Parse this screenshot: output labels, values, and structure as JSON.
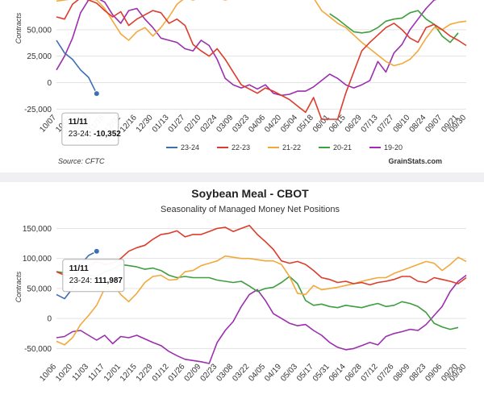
{
  "chart_data": [
    {
      "type": "line",
      "title": "",
      "subtitle": "",
      "ylabel": "Contracts",
      "ylim": [
        -30000,
        78000
      ],
      "yticks": [
        -25000,
        0,
        25000,
        50000
      ],
      "ytick_labels": [
        "-25,000",
        "0",
        "25,000",
        "50,000"
      ],
      "x_labels": [
        "10/07",
        "10/21",
        "11/04",
        "11/18",
        "12/02",
        "12/16",
        "12/30",
        "01/13",
        "01/27",
        "02/10",
        "02/24",
        "03/09",
        "03/23",
        "04/06",
        "04/20",
        "05/04",
        "05/18",
        "06/01",
        "06/15",
        "06/29",
        "07/13",
        "07/27",
        "08/10",
        "08/24",
        "09/07",
        "09/21",
        "09/30"
      ],
      "x_label_positions": [
        0,
        2,
        4,
        6,
        8,
        10,
        12,
        14,
        16,
        18,
        20,
        22,
        24,
        26,
        28,
        30,
        32,
        34,
        36,
        38,
        40,
        42,
        44,
        46,
        48,
        50,
        51
      ],
      "x_range": [
        0,
        51
      ],
      "series": [
        {
          "name": "23-24",
          "color": "#3d6fb0",
          "x": [
            0,
            1,
            2,
            3,
            4,
            5
          ],
          "y": [
            40000,
            28000,
            22000,
            12000,
            5000,
            -10352
          ]
        },
        {
          "name": "22-23",
          "color": "#dc3c2b",
          "x": [
            0,
            1,
            2,
            3,
            4,
            5,
            6,
            7,
            8,
            9,
            10,
            11,
            12,
            13,
            14,
            15,
            16,
            17,
            18,
            19,
            20,
            21,
            22,
            23,
            24,
            25,
            26,
            27,
            28,
            29,
            30,
            31,
            32,
            33,
            34,
            35,
            36,
            37,
            38,
            39,
            40,
            41,
            42,
            43,
            44,
            45,
            46,
            47,
            48,
            49,
            50,
            51
          ],
          "y": [
            62000,
            60000,
            74000,
            80000,
            78000,
            75000,
            68000,
            62000,
            67000,
            54000,
            60000,
            64000,
            68000,
            66000,
            56000,
            60000,
            54000,
            36000,
            30000,
            25000,
            32000,
            22000,
            10000,
            -2000,
            -6000,
            -10000,
            -5000,
            -8000,
            -12000,
            -16000,
            -22000,
            -28000,
            -14000,
            -36000,
            -36000,
            -37000,
            -10000,
            10000,
            30000,
            38000,
            45000,
            52000,
            56000,
            50000,
            42000,
            38000,
            52000,
            55000,
            50000,
            44000,
            40000,
            35000
          ]
        },
        {
          "name": "21-22",
          "color": "#f2a93b",
          "x": [
            0,
            1,
            2,
            3,
            4,
            5,
            6,
            7,
            8,
            9,
            10,
            11,
            12,
            13,
            14,
            15,
            16,
            17,
            18,
            19,
            20,
            21,
            22,
            23,
            24,
            25,
            26,
            27,
            28,
            29,
            30,
            31,
            32,
            33,
            34,
            35,
            36,
            37,
            38,
            39,
            40,
            41,
            42,
            43,
            44,
            45,
            46,
            47,
            48,
            49,
            50,
            51
          ],
          "y": [
            77000,
            78000,
            79000,
            80000,
            79000,
            78000,
            70000,
            58000,
            46000,
            40000,
            48000,
            52000,
            44000,
            52000,
            62000,
            74000,
            80000,
            78000,
            80000,
            81000,
            80000,
            78000,
            80000,
            79000,
            80000,
            79000,
            80000,
            80000,
            79000,
            80000,
            81000,
            80000,
            80000,
            68000,
            62000,
            56000,
            52000,
            45000,
            38000,
            32000,
            26000,
            20000,
            16000,
            18000,
            22000,
            30000,
            42000,
            52000,
            50000,
            55000,
            57000,
            58000
          ]
        },
        {
          "name": "20-21",
          "color": "#3f9e3f",
          "x": [
            34,
            35,
            36,
            37,
            38,
            39,
            40,
            41,
            42,
            43,
            44,
            45,
            46,
            47,
            48,
            49,
            50
          ],
          "y": [
            65000,
            60000,
            54000,
            48000,
            47000,
            48000,
            52000,
            58000,
            60000,
            61000,
            66000,
            68000,
            60000,
            55000,
            44000,
            38000,
            47000
          ]
        },
        {
          "name": "19-20",
          "color": "#9b2fae",
          "x": [
            0,
            1,
            2,
            3,
            4,
            5,
            6,
            7,
            8,
            9,
            10,
            11,
            12,
            13,
            14,
            15,
            16,
            17,
            18,
            19,
            20,
            21,
            22,
            23,
            24,
            25,
            26,
            27,
            28,
            29,
            30,
            31,
            32,
            33,
            34,
            35,
            36,
            37,
            38,
            39,
            40,
            41,
            42,
            43,
            44,
            45,
            46,
            47,
            48,
            49,
            50,
            51
          ],
          "y": [
            12000,
            25000,
            42000,
            66000,
            78000,
            80000,
            76000,
            64000,
            56000,
            68000,
            70000,
            60000,
            52000,
            42000,
            40000,
            38000,
            32000,
            30000,
            40000,
            35000,
            22000,
            4000,
            -2000,
            -5000,
            -2000,
            -6000,
            -2000,
            -10000,
            -12000,
            -11000,
            -8000,
            -8000,
            -4000,
            2000,
            8000,
            4000,
            -2000,
            -5000,
            -2000,
            2000,
            20000,
            10000,
            28000,
            36000,
            50000,
            60000,
            70000,
            78000,
            80000,
            80000,
            80000,
            80000
          ]
        }
      ],
      "tooltip": {
        "title": "11/11",
        "label": "23-24:",
        "value": "-10,352",
        "point_x": 5,
        "point_y": -10352
      },
      "legend": {
        "position": "bottom",
        "entries": [
          "23-24",
          "22-23",
          "21-22",
          "20-21",
          "19-20"
        ]
      },
      "source": "Source: CFTC",
      "brand": "GrainStats.com",
      "colors": {
        "23-24": "#3d6fb0",
        "22-23": "#dc3c2b",
        "21-22": "#f2a93b",
        "20-21": "#3f9e3f",
        "19-20": "#9b2fae"
      }
    },
    {
      "type": "line",
      "title": "Soybean Meal - CBOT",
      "subtitle": "Seasonality of Managed Money Net Positions",
      "ylabel": "Contracts",
      "ylim": [
        -75000,
        160000
      ],
      "yticks": [
        -50000,
        0,
        50000,
        100000,
        150000
      ],
      "ytick_labels": [
        "-50,000",
        "0",
        "50,000",
        "100,000",
        "150,000"
      ],
      "x_labels": [
        "10/06",
        "10/20",
        "11/03",
        "11/17",
        "12/01",
        "12/15",
        "12/29",
        "01/12",
        "01/26",
        "02/09",
        "02/23",
        "03/08",
        "03/22",
        "04/05",
        "04/19",
        "05/03",
        "05/17",
        "05/31",
        "06/14",
        "06/28",
        "07/12",
        "07/26",
        "08/09",
        "08/23",
        "09/06",
        "09/20",
        "09/30"
      ],
      "x_label_positions": [
        0,
        2,
        4,
        6,
        8,
        10,
        12,
        14,
        16,
        18,
        20,
        22,
        24,
        26,
        28,
        30,
        32,
        34,
        36,
        38,
        40,
        42,
        44,
        46,
        48,
        50,
        51
      ],
      "x_range": [
        0,
        51
      ],
      "series": [
        {
          "name": "23-24",
          "color": "#3d6fb0",
          "x": [
            0,
            1,
            2,
            3,
            4,
            5
          ],
          "y": [
            40000,
            33000,
            50000,
            90000,
            105000,
            111987
          ]
        },
        {
          "name": "22-23",
          "color": "#dc3c2b",
          "x": [
            0,
            1,
            2,
            3,
            4,
            5,
            6,
            7,
            8,
            9,
            10,
            11,
            12,
            13,
            14,
            15,
            16,
            17,
            18,
            19,
            20,
            21,
            22,
            23,
            24,
            25,
            26,
            27,
            28,
            29,
            30,
            31,
            32,
            33,
            34,
            35,
            36,
            37,
            38,
            39,
            40,
            41,
            42,
            43,
            44,
            45,
            46,
            47,
            48,
            49,
            50,
            51
          ],
          "y": [
            78000,
            72000,
            72000,
            80000,
            88000,
            95000,
            90000,
            92000,
            100000,
            112000,
            118000,
            122000,
            132000,
            140000,
            142000,
            146000,
            136000,
            140000,
            140000,
            145000,
            150000,
            152000,
            145000,
            150000,
            155000,
            140000,
            128000,
            115000,
            96000,
            92000,
            95000,
            90000,
            80000,
            68000,
            65000,
            60000,
            62000,
            58000,
            60000,
            56000,
            60000,
            62000,
            65000,
            70000,
            70000,
            62000,
            60000,
            68000,
            65000,
            62000,
            58000,
            68000
          ]
        },
        {
          "name": "21-22",
          "color": "#f2a93b",
          "x": [
            0,
            1,
            2,
            3,
            4,
            5,
            6,
            7,
            8,
            9,
            10,
            11,
            12,
            13,
            14,
            15,
            16,
            17,
            18,
            19,
            20,
            21,
            22,
            23,
            24,
            25,
            26,
            27,
            28,
            29,
            30,
            31,
            32,
            33,
            34,
            35,
            36,
            37,
            38,
            39,
            40,
            41,
            42,
            43,
            44,
            45,
            46,
            47,
            48,
            49,
            50,
            51
          ],
          "y": [
            -38000,
            -44000,
            -32000,
            -10000,
            5000,
            22000,
            50000,
            58000,
            40000,
            28000,
            42000,
            60000,
            70000,
            72000,
            64000,
            65000,
            78000,
            80000,
            88000,
            92000,
            96000,
            104000,
            102000,
            100000,
            100000,
            98000,
            96000,
            96000,
            90000,
            70000,
            42000,
            40000,
            55000,
            48000,
            50000,
            52000,
            55000,
            58000,
            62000,
            65000,
            68000,
            68000,
            75000,
            80000,
            85000,
            90000,
            95000,
            92000,
            80000,
            90000,
            102000,
            95000
          ]
        },
        {
          "name": "20-21",
          "color": "#3f9e3f",
          "x": [
            0,
            1,
            2,
            3,
            4,
            5,
            6,
            7,
            8,
            9,
            10,
            11,
            12,
            13,
            14,
            15,
            16,
            17,
            18,
            19,
            20,
            21,
            22,
            23,
            24,
            25,
            26,
            27,
            28,
            29,
            30,
            31,
            32,
            33,
            34,
            35,
            36,
            37,
            38,
            39,
            40,
            41,
            42,
            43,
            44,
            45,
            46,
            47,
            48,
            49,
            50
          ],
          "y": [
            78000,
            76000,
            80000,
            82000,
            72000,
            70000,
            78000,
            82000,
            90000,
            88000,
            86000,
            82000,
            84000,
            80000,
            72000,
            68000,
            70000,
            68000,
            68000,
            68000,
            64000,
            62000,
            60000,
            62000,
            54000,
            45000,
            50000,
            52000,
            60000,
            70000,
            58000,
            30000,
            22000,
            24000,
            20000,
            18000,
            22000,
            20000,
            18000,
            22000,
            25000,
            20000,
            22000,
            28000,
            25000,
            20000,
            10000,
            -8000,
            -14000,
            -18000,
            -15000
          ]
        },
        {
          "name": "19-20",
          "color": "#9b2fae",
          "x": [
            0,
            1,
            2,
            3,
            4,
            5,
            6,
            7,
            8,
            9,
            10,
            11,
            12,
            13,
            14,
            15,
            16,
            17,
            18,
            19,
            20,
            21,
            22,
            23,
            24,
            25,
            26,
            27,
            28,
            29,
            30,
            31,
            32,
            33,
            34,
            35,
            36,
            37,
            38,
            39,
            40,
            41,
            42,
            43,
            44,
            45,
            46,
            47,
            48,
            49,
            50,
            51
          ],
          "y": [
            -32000,
            -30000,
            -22000,
            -20000,
            -28000,
            -36000,
            -28000,
            -42000,
            -30000,
            -32000,
            -28000,
            -34000,
            -40000,
            -45000,
            -55000,
            -62000,
            -68000,
            -70000,
            -72000,
            -75000,
            -40000,
            -20000,
            -5000,
            20000,
            40000,
            48000,
            30000,
            8000,
            0,
            -8000,
            -12000,
            -10000,
            -20000,
            -28000,
            -40000,
            -48000,
            -52000,
            -50000,
            -45000,
            -40000,
            -44000,
            -30000,
            -25000,
            -22000,
            -18000,
            -20000,
            -10000,
            5000,
            20000,
            45000,
            62000,
            72000
          ]
        }
      ],
      "tooltip": {
        "title": "11/11",
        "label": "23-24:",
        "value": "111,987",
        "point_x": 5,
        "point_y": 111987
      },
      "colors": {
        "23-24": "#3d6fb0",
        "22-23": "#dc3c2b",
        "21-22": "#f2a93b",
        "20-21": "#3f9e3f",
        "19-20": "#9b2fae"
      }
    }
  ]
}
